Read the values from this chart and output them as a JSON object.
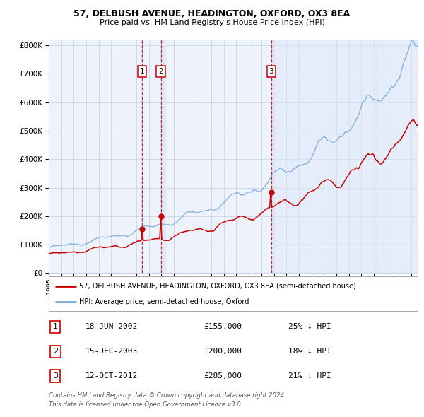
{
  "title": "57, DELBUSH AVENUE, HEADINGTON, OXFORD, OX3 8EA",
  "subtitle": "Price paid vs. HM Land Registry's House Price Index (HPI)",
  "legend_red": "57, DELBUSH AVENUE, HEADINGTON, OXFORD, OX3 8EA (semi-detached house)",
  "legend_blue": "HPI: Average price, semi-detached house, Oxford",
  "footer1": "Contains HM Land Registry data © Crown copyright and database right 2024.",
  "footer2": "This data is licensed under the Open Government Licence v3.0.",
  "transactions": [
    {
      "num": 1,
      "date": "18-JUN-2002",
      "price": 155000,
      "pct": "25%",
      "dir": "↓",
      "x_year": 2002.46
    },
    {
      "num": 2,
      "date": "15-DEC-2003",
      "price": 200000,
      "pct": "18%",
      "dir": "↓",
      "x_year": 2003.96
    },
    {
      "num": 3,
      "date": "12-OCT-2012",
      "price": 285000,
      "pct": "21%",
      "dir": "↓",
      "x_year": 2012.79
    }
  ],
  "ylim": [
    0,
    820000
  ],
  "xlim_start": 1995.0,
  "xlim_end": 2024.5,
  "bg_color": "#eef3fb",
  "plot_bg": "#ffffff",
  "grid_color": "#c8d4e8",
  "red_color": "#cc0000",
  "blue_color": "#7aaddd",
  "transaction_shade": "#dce9f8",
  "transaction_line": "#cc0000",
  "box_edge": "#cc0000"
}
